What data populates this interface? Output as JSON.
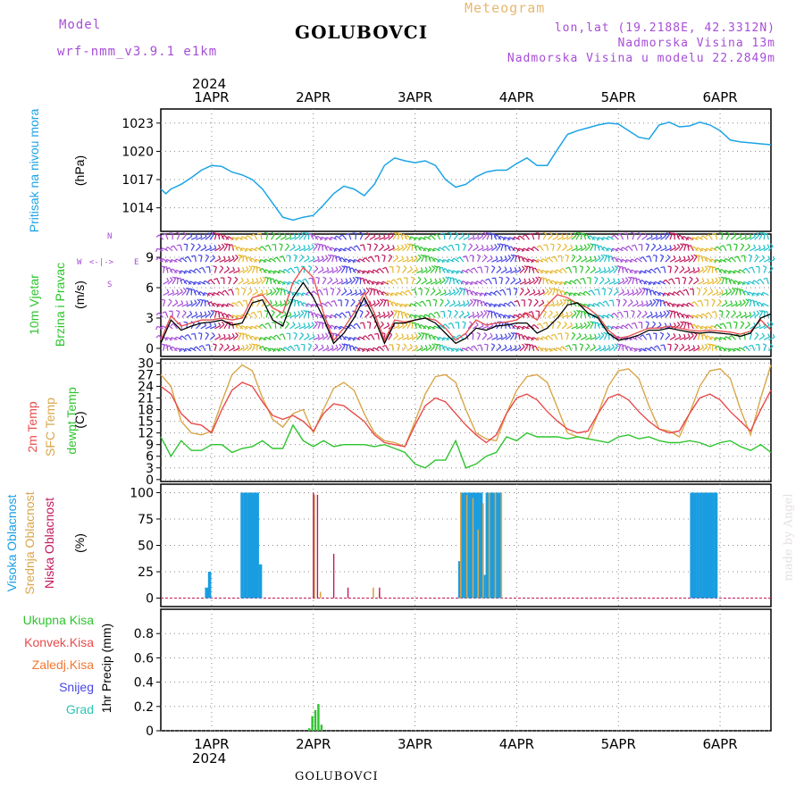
{
  "header": {
    "model_label": "Model",
    "model_name": "wrf-nmm_v3.9.1 e1km",
    "station": "GOLUBOVCI",
    "product": "Meteogram",
    "coords": "lon,lat (19.2188E, 42.3312N)",
    "elev": "Nadmorska Visina 13m",
    "elev_model": "Nadmorska Visina u modelu 22.2849m",
    "year_top": "2024",
    "year_bottom": "2024",
    "footer": "GOLUBOVCI",
    "watermark": "made by Angel"
  },
  "colors": {
    "pressure": "#1ca3e6",
    "wind_speed": "#000000",
    "wind_gust": "#e84a4a",
    "temp2m": "#e84a4a",
    "sfc_temp": "#d9a64a",
    "dewpt": "#2ec42e",
    "high_cloud": "#1a9de0",
    "mid_cloud": "#d9a64a",
    "low_cloud": "#c2185b",
    "precip_total": "#2ec42e",
    "precip_conv": "#e84a4a",
    "snow": "#4646e6",
    "graupel": "#2ec4b4",
    "frozen": "#f07832"
  },
  "panels": {
    "pressure": {
      "lab1": "Pritisak na nivou mora",
      "unit": "(hPa)"
    },
    "wind": {
      "lab1": "10m Vjetar",
      "lab2": "Brzina i Pravac",
      "unit": "(m/s)",
      "compass_n": "N",
      "compass_s": "S",
      "compass_w": "W",
      "compass_e": "E",
      "compass_mid": "<-|->"
    },
    "temp": {
      "lab1": "2m Temp",
      "lab2": "SFC Temp",
      "lab3": "dewpt Temp",
      "unit": "(C)"
    },
    "cloud": {
      "lab1": "Visoka Oblacnost",
      "lab2": "Srednja Oblacnost",
      "lab3": "Niska Oblacnost",
      "unit": "(%)"
    },
    "precip": {
      "unit": "1hr Precip (mm)",
      "leg": [
        "Ukupna Kisa",
        "Konvek.Kisa",
        "Zaledj.Kisa",
        "Snijeg",
        "Grad"
      ]
    }
  },
  "chart_data": {
    "type": "line",
    "x_range_days": [
      -0.5,
      5.5
    ],
    "x_ticks": [
      "1APR",
      "2APR",
      "3APR",
      "4APR",
      "5APR",
      "6APR"
    ],
    "pressure": {
      "ylim": [
        1011.5,
        1024.5
      ],
      "yticks": [
        1014,
        1017,
        1020,
        1023
      ],
      "x": [
        -0.5,
        -0.45,
        -0.4,
        -0.3,
        -0.2,
        -0.1,
        0,
        0.1,
        0.2,
        0.3,
        0.4,
        0.5,
        0.6,
        0.7,
        0.8,
        0.9,
        1,
        1.1,
        1.2,
        1.3,
        1.4,
        1.5,
        1.6,
        1.7,
        1.8,
        1.9,
        2,
        2.1,
        2.2,
        2.3,
        2.4,
        2.5,
        2.6,
        2.7,
        2.8,
        2.9,
        3,
        3.1,
        3.2,
        3.3,
        3.4,
        3.5,
        3.6,
        3.7,
        3.8,
        3.9,
        4,
        4.1,
        4.2,
        4.3,
        4.4,
        4.5,
        4.6,
        4.7,
        4.8,
        4.9,
        5,
        5.1,
        5.2,
        5.3,
        5.4,
        5.5
      ],
      "values": [
        1016,
        1015.5,
        1016,
        1016.5,
        1017.2,
        1018,
        1018.5,
        1018.4,
        1017.8,
        1017.5,
        1017,
        1016,
        1014.5,
        1013,
        1012.7,
        1013,
        1013.2,
        1014.3,
        1015.5,
        1016.3,
        1016,
        1015.3,
        1016.5,
        1018.5,
        1019.3,
        1019,
        1018.8,
        1019,
        1018.5,
        1017,
        1016.2,
        1016.5,
        1017.3,
        1017.8,
        1018,
        1018,
        1018.7,
        1019.3,
        1018.5,
        1018.5,
        1020.2,
        1021.8,
        1022.2,
        1022.5,
        1022.8,
        1023,
        1022.9,
        1022.2,
        1021.5,
        1021.3,
        1022.8,
        1023.1,
        1022.6,
        1022.7,
        1023.1,
        1022.8,
        1022.2,
        1021.2,
        1021,
        1020.9,
        1020.8,
        1020.7
      ]
    },
    "wind": {
      "ylim": [
        -0.8,
        11.3
      ],
      "yticks": [
        0,
        3,
        6,
        9
      ],
      "x": [
        -0.5,
        -0.4,
        -0.3,
        -0.2,
        -0.1,
        0,
        0.1,
        0.2,
        0.3,
        0.4,
        0.5,
        0.6,
        0.7,
        0.8,
        0.9,
        1,
        1.1,
        1.2,
        1.3,
        1.4,
        1.5,
        1.6,
        1.7,
        1.8,
        1.9,
        2,
        2.1,
        2.2,
        2.3,
        2.4,
        2.5,
        2.6,
        2.7,
        2.8,
        2.9,
        3,
        3.1,
        3.2,
        3.3,
        3.4,
        3.5,
        3.6,
        3.7,
        3.8,
        3.9,
        4,
        4.1,
        4.2,
        4.3,
        4.4,
        4.5,
        4.6,
        4.7,
        4.8,
        4.9,
        5,
        5.1,
        5.2,
        5.3,
        5.4,
        5.5
      ],
      "speed": [
        0.5,
        2.8,
        1.8,
        2.2,
        2.5,
        2.6,
        2.8,
        2.3,
        2.5,
        4.5,
        4.8,
        2.8,
        2.2,
        5,
        6.5,
        5,
        3,
        0.5,
        1.5,
        3,
        5,
        3,
        0.5,
        2.5,
        2.5,
        2.8,
        3,
        2.5,
        1.5,
        0.5,
        1,
        2,
        1.8,
        2.2,
        2.3,
        2.5,
        2.5,
        1.5,
        2,
        3,
        4.3,
        4.5,
        3.5,
        3,
        1.5,
        0.8,
        1,
        1.3,
        1.8,
        1.8,
        2,
        1.8,
        1.6,
        1.5,
        1.6,
        1.5,
        1.4,
        1.2,
        1.5,
        3,
        3.4
      ],
      "gust": [
        0.8,
        3.2,
        2.2,
        2.5,
        2.8,
        2.8,
        3,
        2.8,
        3,
        5,
        5.3,
        4,
        3.5,
        6.5,
        8,
        7,
        3.5,
        0.8,
        2,
        3.5,
        5.5,
        3.5,
        0.8,
        2.8,
        2.6,
        2.8,
        3,
        2.8,
        2,
        0.8,
        1.5,
        2.8,
        2.3,
        2.5,
        2.6,
        2.8,
        3.5,
        2.8,
        4.3,
        5.3,
        5,
        4.4,
        4,
        3.2,
        1.8,
        1,
        1.2,
        1.6,
        2,
        2,
        2.2,
        2,
        1.8,
        1.7,
        1.8,
        1.7,
        1.6,
        1.4,
        1.7,
        2.8,
        1.8
      ]
    },
    "temp": {
      "ylim": [
        -0.5,
        31
      ],
      "yticks": [
        0,
        3,
        6,
        9,
        12,
        15,
        18,
        21,
        24,
        27,
        30
      ],
      "x": [
        -0.5,
        -0.4,
        -0.3,
        -0.2,
        -0.1,
        0,
        0.1,
        0.2,
        0.3,
        0.4,
        0.5,
        0.6,
        0.7,
        0.8,
        0.9,
        1,
        1.1,
        1.2,
        1.3,
        1.4,
        1.5,
        1.6,
        1.7,
        1.8,
        1.9,
        2,
        2.1,
        2.2,
        2.3,
        2.4,
        2.5,
        2.6,
        2.7,
        2.8,
        2.9,
        3,
        3.1,
        3.2,
        3.3,
        3.4,
        3.5,
        3.6,
        3.7,
        3.8,
        3.9,
        4,
        4.1,
        4.2,
        4.3,
        4.4,
        4.5,
        4.6,
        4.7,
        4.8,
        4.9,
        5,
        5.1,
        5.2,
        5.3,
        5.4,
        5.5
      ],
      "t2m": [
        24,
        22,
        17,
        14.5,
        14,
        12,
        18,
        23,
        25,
        24,
        20,
        16.5,
        15.5,
        16.5,
        15,
        12.5,
        17,
        19.5,
        19,
        17,
        15,
        11.5,
        9.5,
        9,
        8.5,
        14,
        19,
        21,
        20,
        17,
        14,
        11.5,
        9.5,
        11.5,
        17,
        21,
        22,
        20.5,
        17.5,
        15,
        13,
        12,
        12.5,
        17,
        21,
        22,
        20.5,
        17.5,
        15,
        13,
        12,
        12.5,
        17,
        21,
        22,
        20.5,
        17.5,
        15,
        12.5,
        18,
        23
      ],
      "sfc": [
        27,
        24,
        15,
        12,
        11.5,
        12.5,
        20,
        27,
        29.5,
        28,
        21,
        15.5,
        13.5,
        17,
        18,
        12,
        18,
        23.5,
        25,
        23,
        17,
        12,
        10,
        9.5,
        8.5,
        15,
        22,
        26.5,
        27,
        25,
        18,
        12,
        10.5,
        10,
        17,
        23,
        26.5,
        27,
        25,
        18.5,
        12,
        11,
        10.5,
        17,
        24,
        28,
        28.5,
        26,
        19,
        13,
        12.5,
        11,
        17,
        24,
        28,
        28.5,
        26,
        18,
        11.5,
        21,
        29.5
      ],
      "dewpt": [
        11,
        6,
        10,
        7.5,
        7.5,
        9,
        9,
        7,
        8,
        8.5,
        10,
        8,
        8,
        14,
        10,
        8.5,
        10,
        8.5,
        9,
        9,
        9,
        8.5,
        9,
        8,
        7,
        4,
        3,
        5,
        5,
        10,
        3,
        4,
        6,
        7,
        11,
        10,
        12,
        11,
        11,
        11,
        10.5,
        11,
        10.5,
        10,
        9.5,
        11,
        11.5,
        10.5,
        11,
        10,
        9.5,
        9.5,
        10,
        9.5,
        8.5,
        9.5,
        10,
        8.5,
        7.5,
        9,
        7
      ]
    },
    "cloud": {
      "ylim": [
        -8,
        108
      ],
      "yticks": [
        0,
        25,
        50,
        75,
        100
      ],
      "high": [
        [
          -0.05,
          10
        ],
        [
          -0.02,
          25
        ],
        [
          0.3,
          100
        ],
        [
          0.33,
          100
        ],
        [
          0.36,
          100
        ],
        [
          0.39,
          100
        ],
        [
          0.42,
          100
        ],
        [
          0.45,
          100
        ],
        [
          0.48,
          32
        ],
        [
          2.44,
          35
        ],
        [
          2.47,
          100
        ],
        [
          2.5,
          100
        ],
        [
          2.53,
          100
        ],
        [
          2.56,
          100
        ],
        [
          2.59,
          100
        ],
        [
          2.62,
          100
        ],
        [
          2.65,
          100
        ],
        [
          2.68,
          22
        ],
        [
          2.71,
          100
        ],
        [
          2.74,
          100
        ],
        [
          2.77,
          100
        ],
        [
          2.8,
          100
        ],
        [
          2.83,
          100
        ],
        [
          4.72,
          100
        ],
        [
          4.75,
          100
        ],
        [
          4.78,
          100
        ],
        [
          4.81,
          100
        ],
        [
          4.84,
          100
        ],
        [
          4.87,
          100
        ],
        [
          4.9,
          100
        ],
        [
          4.93,
          100
        ],
        [
          4.96,
          100
        ]
      ],
      "mid": [
        [
          1.01,
          98
        ],
        [
          1.07,
          6
        ],
        [
          2.45,
          100
        ],
        [
          2.51,
          98
        ],
        [
          2.57,
          95
        ],
        [
          2.62,
          65
        ],
        [
          2.67,
          90
        ],
        [
          2.73,
          100
        ],
        [
          2.79,
          100
        ],
        [
          2.85,
          100
        ],
        [
          1.59,
          10
        ],
        [
          1.65,
          6
        ]
      ],
      "low": [
        [
          1.0,
          100
        ],
        [
          1.04,
          98
        ],
        [
          1.2,
          42
        ],
        [
          1.34,
          10
        ],
        [
          1.65,
          10
        ]
      ]
    },
    "precip": {
      "ylim": [
        0,
        1
      ],
      "yticks": [
        0,
        0.2,
        0.4,
        0.6,
        0.8
      ],
      "bars": [
        [
          0.96,
          0.02
        ],
        [
          0.99,
          0.12
        ],
        [
          1.02,
          0.17
        ],
        [
          1.05,
          0.22
        ],
        [
          1.08,
          0.05
        ]
      ]
    }
  }
}
